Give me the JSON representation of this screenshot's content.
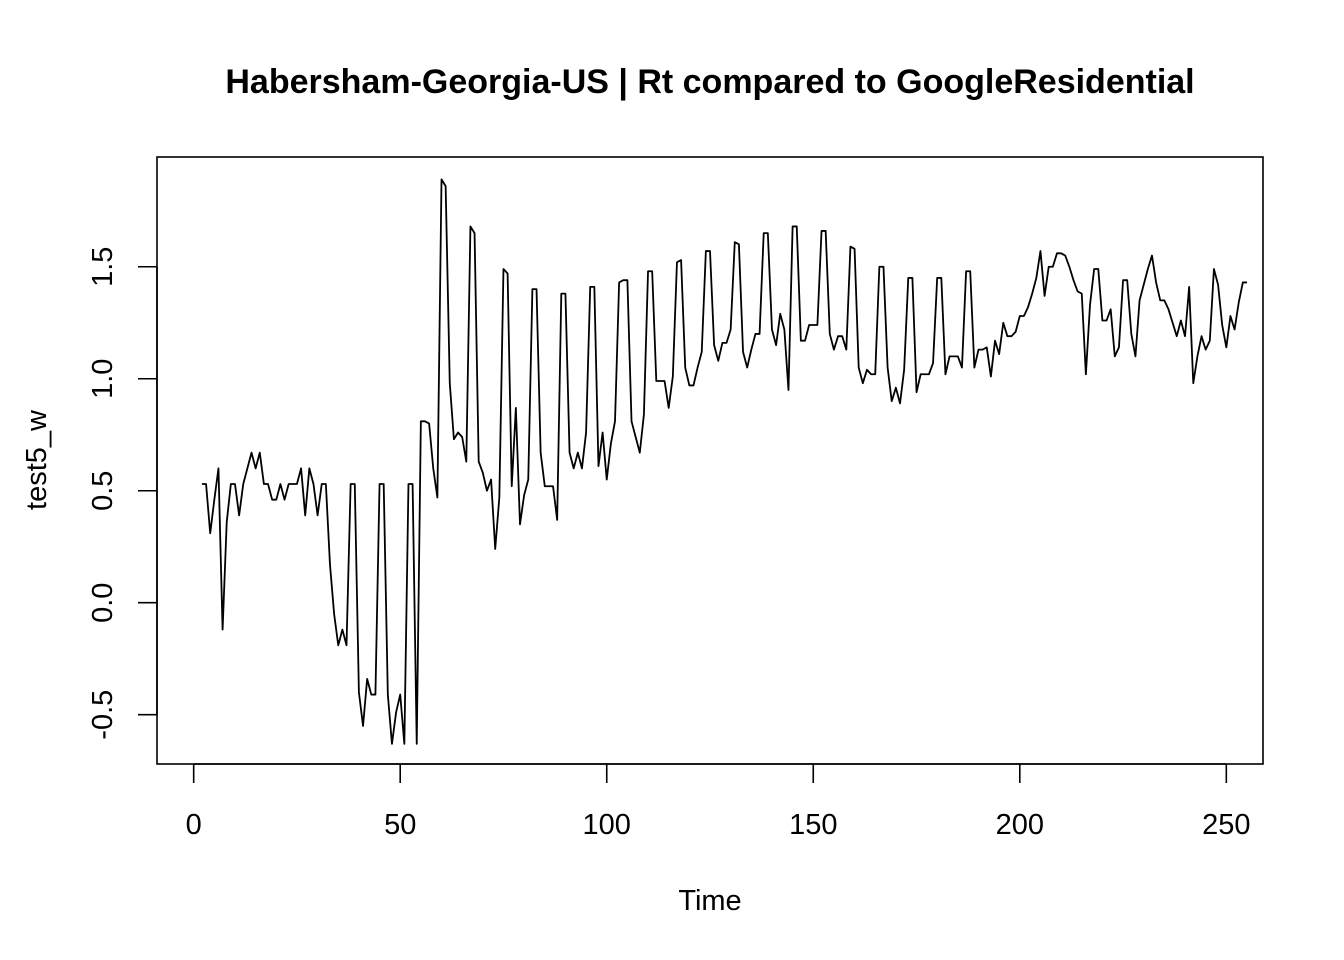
{
  "chart_data": {
    "type": "line",
    "title": "Habersham-Georgia-US | Rt compared to GoogleResidential",
    "xlabel": "Time",
    "ylabel": "test5_w",
    "xlim": [
      -8.88,
      258.88
    ],
    "ylim": [
      -0.72,
      1.99
    ],
    "x_ticks": [
      0,
      50,
      100,
      150,
      200,
      250
    ],
    "y_ticks": [
      -0.5,
      0.0,
      0.5,
      1.0,
      1.5
    ],
    "x_tick_labels": [
      "0",
      "50",
      "100",
      "150",
      "200",
      "250"
    ],
    "y_tick_labels": [
      "-0.5",
      "0.0",
      "0.5",
      "1.0",
      "1.5"
    ],
    "grid": false,
    "legend": "none",
    "line_color": "#000000",
    "series": [
      {
        "x_start": 2,
        "x_step": 1,
        "values": [
          0.53,
          0.53,
          0.31,
          0.46,
          0.6,
          -0.12,
          0.36,
          0.53,
          0.53,
          0.39,
          0.53,
          0.6,
          0.67,
          0.6,
          0.67,
          0.53,
          0.53,
          0.46,
          0.46,
          0.53,
          0.46,
          0.53,
          0.53,
          0.53,
          0.6,
          0.39,
          0.6,
          0.53,
          0.39,
          0.53,
          0.53,
          0.17,
          -0.05,
          -0.19,
          -0.12,
          -0.19,
          0.53,
          0.53,
          -0.4,
          -0.55,
          -0.34,
          -0.41,
          -0.41,
          0.53,
          0.53,
          -0.41,
          -0.63,
          -0.49,
          -0.41,
          -0.63,
          0.53,
          0.53,
          -0.63,
          0.81,
          0.81,
          0.8,
          0.6,
          0.47,
          1.89,
          1.86,
          0.98,
          0.73,
          0.76,
          0.74,
          0.63,
          1.68,
          1.65,
          0.63,
          0.58,
          0.5,
          0.55,
          0.24,
          0.47,
          1.49,
          1.47,
          0.52,
          0.87,
          0.35,
          0.48,
          0.55,
          1.4,
          1.4,
          0.67,
          0.52,
          0.52,
          0.52,
          0.37,
          1.38,
          1.38,
          0.67,
          0.6,
          0.67,
          0.6,
          0.76,
          1.41,
          1.41,
          0.61,
          0.76,
          0.55,
          0.71,
          0.81,
          1.43,
          1.44,
          1.44,
          0.81,
          0.74,
          0.67,
          0.84,
          1.48,
          1.48,
          0.99,
          0.99,
          0.99,
          0.87,
          1.01,
          1.52,
          1.53,
          1.05,
          0.97,
          0.97,
          1.05,
          1.12,
          1.57,
          1.57,
          1.15,
          1.08,
          1.16,
          1.16,
          1.22,
          1.61,
          1.6,
          1.12,
          1.05,
          1.13,
          1.2,
          1.2,
          1.65,
          1.65,
          1.22,
          1.15,
          1.29,
          1.22,
          0.95,
          1.68,
          1.68,
          1.17,
          1.17,
          1.24,
          1.24,
          1.24,
          1.66,
          1.66,
          1.2,
          1.13,
          1.19,
          1.19,
          1.13,
          1.59,
          1.58,
          1.05,
          0.98,
          1.04,
          1.02,
          1.02,
          1.5,
          1.5,
          1.05,
          0.9,
          0.96,
          0.89,
          1.04,
          1.45,
          1.45,
          0.94,
          1.02,
          1.02,
          1.02,
          1.07,
          1.45,
          1.45,
          1.02,
          1.1,
          1.1,
          1.1,
          1.05,
          1.48,
          1.48,
          1.05,
          1.13,
          1.13,
          1.14,
          1.01,
          1.17,
          1.11,
          1.25,
          1.19,
          1.19,
          1.21,
          1.28,
          1.28,
          1.32,
          1.38,
          1.45,
          1.57,
          1.37,
          1.5,
          1.5,
          1.56,
          1.56,
          1.55,
          1.5,
          1.44,
          1.39,
          1.38,
          1.02,
          1.33,
          1.49,
          1.49,
          1.26,
          1.26,
          1.31,
          1.1,
          1.14,
          1.44,
          1.44,
          1.2,
          1.1,
          1.35,
          1.42,
          1.49,
          1.55,
          1.43,
          1.35,
          1.35,
          1.31,
          1.25,
          1.19,
          1.26,
          1.19,
          1.41,
          0.98,
          1.1,
          1.19,
          1.13,
          1.17,
          1.49,
          1.42,
          1.24,
          1.14,
          1.28,
          1.22,
          1.34,
          1.43,
          1.43
        ]
      }
    ]
  }
}
